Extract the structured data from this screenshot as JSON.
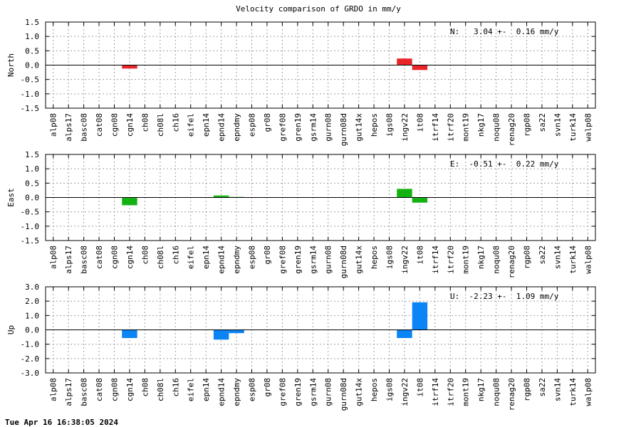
{
  "chart_data": {
    "type": "bar",
    "title": "Velocity comparison of GRDO in mm/y",
    "footer": "Tue Apr 16 16:38:05 2024",
    "categories": [
      "alp08",
      "alps17",
      "basc08",
      "cat08",
      "cgn08",
      "cgn14",
      "ch08",
      "ch08l",
      "ch16",
      "eifel",
      "epn14",
      "epnd14",
      "epndmy",
      "esp08",
      "gr08",
      "gref08",
      "gren19",
      "gsrm14",
      "gurn08",
      "gurn08d",
      "gut14x",
      "hepos",
      "igs08",
      "ingv22",
      "it08",
      "itrf14",
      "itrf20",
      "mont19",
      "nkg17",
      "noqu08",
      "renag20",
      "rgp08",
      "sa22",
      "svn14",
      "turk14",
      "walp08"
    ],
    "panels": [
      {
        "ylabel": "North",
        "color": "#e8262a",
        "ylim": [
          -1.5,
          1.5
        ],
        "yticks": [
          "1.5",
          "1.0",
          "0.5",
          "0.0",
          "-0.5",
          "-1.0",
          "-1.5"
        ],
        "ytick_values": [
          1.5,
          1.0,
          0.5,
          0.0,
          -0.5,
          -1.0,
          -1.5
        ],
        "annotation": "N:   3.04 +-  0.16 mm/y",
        "values": [
          0,
          0,
          0,
          0,
          0,
          -0.12,
          0,
          0,
          0,
          0,
          0,
          0,
          0,
          0,
          0,
          0,
          0,
          0,
          0,
          0,
          0,
          0,
          0,
          0.23,
          -0.17,
          0,
          0,
          0,
          0,
          0,
          0,
          0,
          0,
          0,
          0,
          0
        ]
      },
      {
        "ylabel": "East",
        "color": "#13b212",
        "ylim": [
          -1.5,
          1.5
        ],
        "yticks": [
          "1.5",
          "1.0",
          "0.5",
          "0.0",
          "-0.5",
          "-1.0",
          "-1.5"
        ],
        "ytick_values": [
          1.5,
          1.0,
          0.5,
          0.0,
          -0.5,
          -1.0,
          -1.5
        ],
        "annotation": "E:  -0.51 +-  0.22 mm/y",
        "values": [
          0,
          0,
          0,
          0,
          0,
          -0.27,
          0,
          0,
          0,
          0,
          0,
          0.07,
          0.02,
          0,
          0,
          0,
          0,
          0,
          0,
          0,
          0,
          0,
          0,
          0.3,
          -0.18,
          0,
          0,
          0,
          0,
          0,
          0,
          0,
          0,
          0,
          0,
          0
        ]
      },
      {
        "ylabel": "Up",
        "color": "#0b84f5",
        "ylim": [
          -3.0,
          3.0
        ],
        "yticks": [
          "3.0",
          "2.0",
          "1.0",
          "0.0",
          "-1.0",
          "-2.0",
          "-3.0"
        ],
        "ytick_values": [
          3.0,
          2.0,
          1.0,
          0.0,
          -1.0,
          -2.0,
          -3.0
        ],
        "annotation": "U:  -2.23 +-  1.09 mm/y",
        "values": [
          0,
          0,
          0,
          0,
          0,
          -0.57,
          0,
          0,
          0,
          0,
          0,
          -0.68,
          -0.23,
          0,
          0,
          0,
          0,
          0,
          0,
          0,
          0,
          0,
          0,
          -0.57,
          1.92,
          0,
          0,
          0,
          0,
          0,
          0,
          0,
          0,
          0,
          0,
          0
        ]
      }
    ],
    "grid": true
  }
}
